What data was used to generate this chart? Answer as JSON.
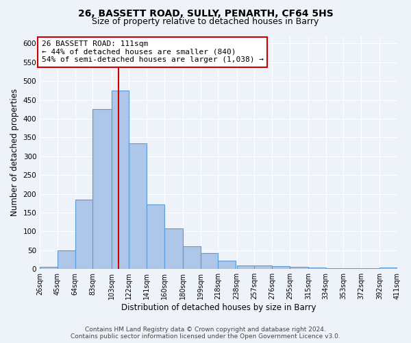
{
  "title": "26, BASSETT ROAD, SULLY, PENARTH, CF64 5HS",
  "subtitle": "Size of property relative to detached houses in Barry",
  "xlabel": "Distribution of detached houses by size in Barry",
  "ylabel": "Number of detached properties",
  "footer_line1": "Contains HM Land Registry data © Crown copyright and database right 2024.",
  "footer_line2": "Contains public sector information licensed under the Open Government Licence v3.0.",
  "annotation_line1": "26 BASSETT ROAD: 111sqm",
  "annotation_line2": "← 44% of detached houses are smaller (840)",
  "annotation_line3": "54% of semi-detached houses are larger (1,038) →",
  "property_value": 111,
  "bar_left_edges": [
    26,
    45,
    64,
    83,
    103,
    122,
    141,
    160,
    180,
    199,
    218,
    238,
    257,
    276,
    295,
    315,
    334,
    353,
    372,
    392
  ],
  "bar_widths": [
    19,
    19,
    19,
    20,
    19,
    19,
    19,
    20,
    19,
    19,
    19,
    19,
    19,
    19,
    20,
    19,
    19,
    19,
    20,
    19
  ],
  "bar_heights": [
    5,
    50,
    185,
    425,
    475,
    335,
    172,
    107,
    60,
    43,
    22,
    10,
    10,
    8,
    5,
    4,
    2,
    2,
    2,
    3
  ],
  "bar_color": "#aec6e8",
  "bar_edge_color": "#5b9bd5",
  "vline_x": 111,
  "vline_color": "#cc0000",
  "ylim": [
    0,
    620
  ],
  "yticks": [
    0,
    50,
    100,
    150,
    200,
    250,
    300,
    350,
    400,
    450,
    500,
    550,
    600
  ],
  "last_edge": 411,
  "xlim_left": 26,
  "xlim_right": 411,
  "bg_color": "#eef2f9",
  "plot_bg_color": "#eef2f9",
  "grid_color": "#ffffff",
  "annotation_box_color": "#cc0000",
  "title_fontsize": 10,
  "subtitle_fontsize": 9,
  "tick_label_fontsize": 7,
  "axis_label_fontsize": 8.5,
  "annotation_fontsize": 8,
  "footer_fontsize": 6.5
}
